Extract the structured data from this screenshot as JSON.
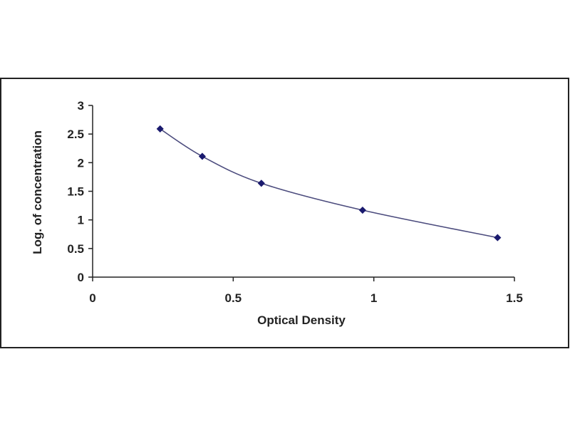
{
  "chart_data": {
    "type": "scatter",
    "title": "",
    "xlabel": "Optical Density",
    "ylabel": "Log. of concentration",
    "xlim": [
      0,
      1.5
    ],
    "ylim": [
      0,
      3
    ],
    "xticks": [
      "0",
      "0.5",
      "1",
      "1.5"
    ],
    "yticks": [
      "0",
      "0.5",
      "1",
      "1.5",
      "2",
      "2.5",
      "3"
    ],
    "grid": false,
    "legend": "none",
    "series": [
      {
        "x": [
          0.24,
          0.39,
          0.6,
          0.96,
          1.44
        ],
        "y": [
          2.59,
          2.11,
          1.64,
          1.17,
          0.69
        ],
        "marker": "diamond",
        "smooth_line": true
      }
    ],
    "colors": {
      "marker": "#1a1a6e",
      "line": "#4b4b7d",
      "axis": "#222222",
      "frame": "#222222",
      "background": "#ffffff"
    }
  }
}
